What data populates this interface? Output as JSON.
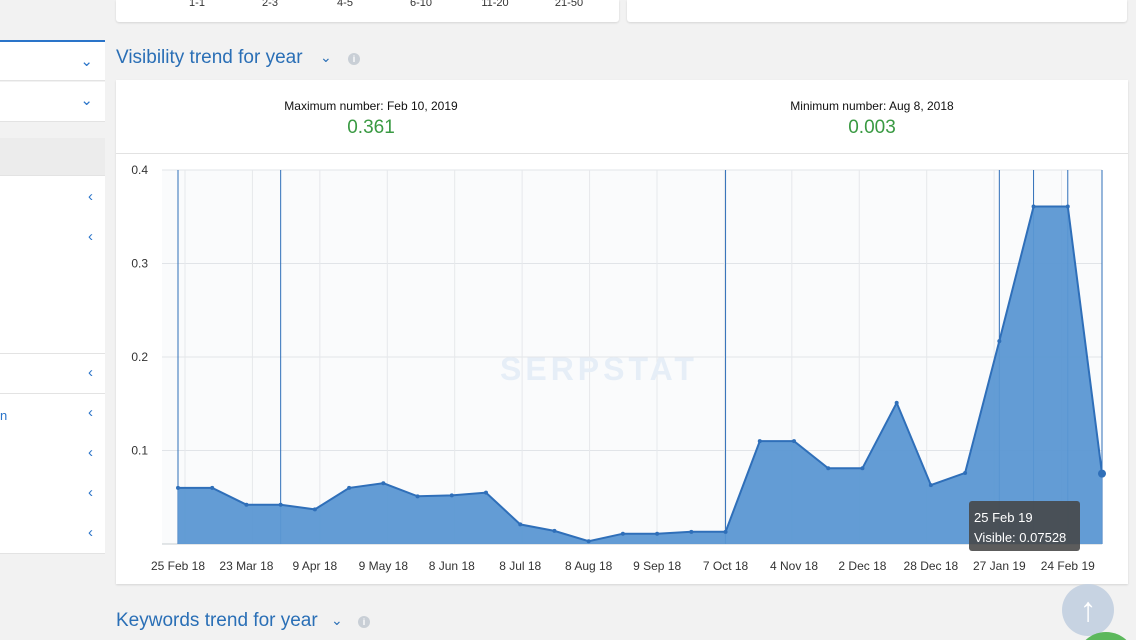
{
  "top_ticks": [
    "1-1",
    "2-3",
    "4-5",
    "6-10",
    "11-20",
    "21-50"
  ],
  "sidebar": {
    "stub_text": "n"
  },
  "visibility_section": {
    "title": "Visibility trend for year",
    "max_label": "Maximum number: Feb 10, 2019",
    "max_value": "0.361",
    "min_label": "Minimum number: Aug 8, 2018",
    "min_value": "0.003",
    "watermark": "SERPSTAT"
  },
  "tooltip": {
    "date": "25 Feb 19",
    "value_line": "Visible: 0.07528"
  },
  "keywords_section": {
    "title": "Keywords trend for year"
  },
  "colors": {
    "accent": "#2a6fb6",
    "area_fill": "#5b97d3",
    "line": "#2f6fb9",
    "positive": "#3a9a43"
  },
  "chart_data": {
    "type": "area",
    "series": [
      {
        "values": [
          0.06,
          0.06,
          0.042,
          0.042,
          0.037,
          0.06,
          0.065,
          0.051,
          0.052,
          0.055,
          0.021,
          0.014,
          0.003,
          0.011,
          0.011,
          0.013,
          0.013,
          0.11,
          0.11,
          0.081,
          0.081,
          0.151,
          0.063,
          0.076,
          0.217,
          0.361,
          0.361,
          0.07528
        ]
      }
    ],
    "x_tick_labels": [
      "25 Feb 18",
      "23 Mar 18",
      "9 Apr 18",
      "9 May 18",
      "8 Jun 18",
      "8 Jul 18",
      "8 Aug 18",
      "9 Sep 18",
      "7 Oct 18",
      "4 Nov 18",
      "2 Dec 18",
      "28 Dec 18",
      "27 Jan 19",
      "24 Feb 19"
    ],
    "y_ticks": [
      "0.4",
      "0.3",
      "0.2",
      "0.1"
    ],
    "ylim": [
      0,
      0.4
    ],
    "grid": true
  }
}
